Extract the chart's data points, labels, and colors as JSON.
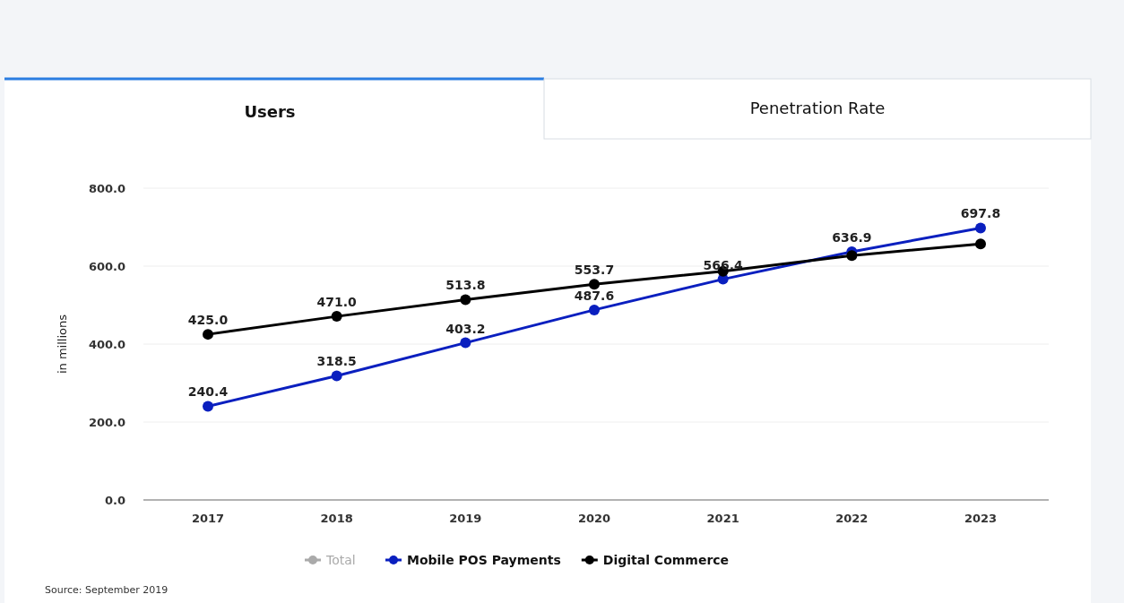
{
  "chart_data": {
    "type": "line",
    "ylabel": "in millions",
    "categories": [
      "2017",
      "2018",
      "2019",
      "2020",
      "2021",
      "2022",
      "2023"
    ],
    "ylim": [
      0,
      800
    ],
    "yticks": [
      {
        "value": 0,
        "label": "0.0"
      },
      {
        "value": 200,
        "label": "200.0"
      },
      {
        "value": 400,
        "label": "400.0"
      },
      {
        "value": 600,
        "label": "600.0"
      },
      {
        "value": 800,
        "label": "800.0"
      }
    ],
    "grid": "y",
    "legend": "bottom",
    "marker": "circle",
    "line_style": "solid",
    "series": [
      {
        "name": "Total",
        "color": "#aaaaaa",
        "values": [
          null,
          null,
          null,
          null,
          null,
          null,
          null
        ]
      },
      {
        "name": "Mobile POS Payments",
        "color": "#0a1fbf",
        "values": [
          240.4,
          318.5,
          403.2,
          487.6,
          566.4,
          636.9,
          697.8
        ],
        "value_labels": [
          "240.4",
          "318.5",
          "403.2",
          "487.6",
          "566.4",
          "636.9",
          "697.8"
        ]
      },
      {
        "name": "Digital Commerce",
        "color": "#000000",
        "values": [
          425.0,
          471.0,
          513.8,
          553.7,
          587,
          627,
          657
        ],
        "value_labels": [
          "425.0",
          "471.0",
          "513.8",
          "553.7",
          null,
          null,
          null
        ]
      }
    ],
    "annotations": [
      "Users",
      "Penetration Rate",
      "Source: September 2019"
    ]
  }
}
